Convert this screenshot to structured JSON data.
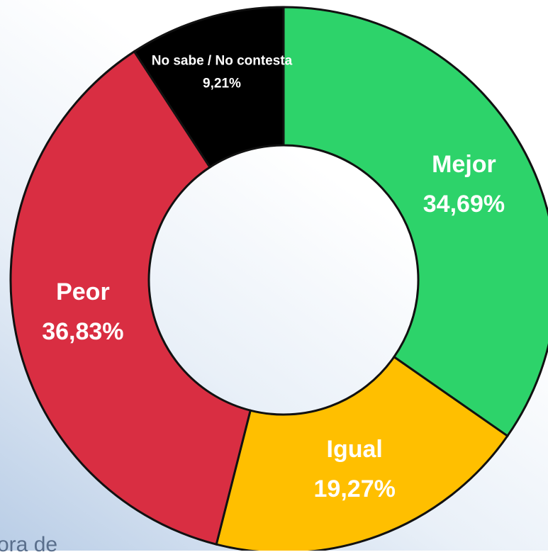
{
  "chart_data": {
    "type": "donut",
    "categories": [
      "Mejor",
      "Igual",
      "Peor",
      "No sabe / No contesta"
    ],
    "values": [
      34.69,
      19.27,
      36.83,
      9.21
    ],
    "value_labels": [
      "34,69%",
      "19,27%",
      "36,83%",
      "9,21%"
    ],
    "colors": [
      "#2dd36a",
      "#ffbf00",
      "#d92e42",
      "#000000"
    ]
  },
  "footer_fragment": "ora de"
}
